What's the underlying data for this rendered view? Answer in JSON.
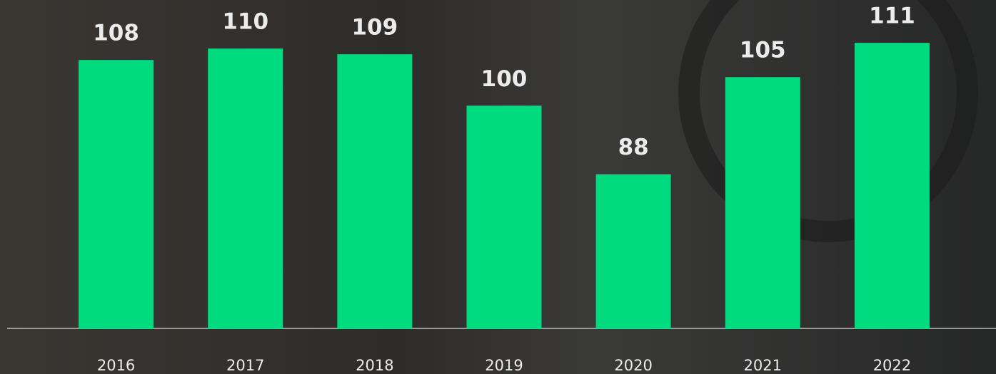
{
  "chart_data": {
    "type": "bar",
    "categories": [
      "2016",
      "2017",
      "2018",
      "2019",
      "2020",
      "2021",
      "2022"
    ],
    "values": [
      108,
      110,
      109,
      100,
      88,
      105,
      111
    ],
    "color": "#00db80",
    "ylim": [
      61,
      118.5
    ]
  }
}
